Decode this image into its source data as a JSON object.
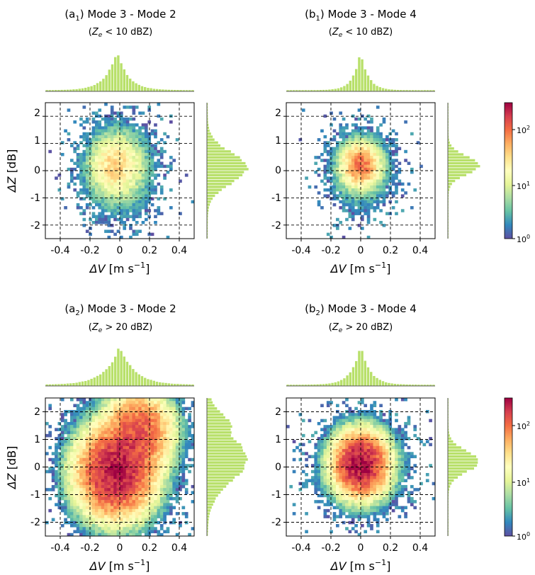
{
  "colorbar": {
    "type": "log",
    "range": [
      1,
      300
    ],
    "ticks": [
      {
        "base": "10",
        "exp": "0"
      },
      {
        "base": "10",
        "exp": "1"
      },
      {
        "base": "10",
        "exp": "2"
      }
    ],
    "colors": [
      "#5e4fa2",
      "#3288bd",
      "#66c2a5",
      "#abdda4",
      "#e6f598",
      "#ffffbf",
      "#fee08b",
      "#fdae61",
      "#f46d43",
      "#d53e4f",
      "#9e0142"
    ]
  },
  "hist_color": "#b8e06a",
  "chart_data": [
    {
      "type": "heatmap",
      "title_prefix": "(a",
      "title_sub": "1",
      "title_suffix": ") Mode 3 - Mode 2",
      "subtitle_var": "Z",
      "subtitle_sub": "e",
      "subtitle_rest": " < 10 dBZ)",
      "x_ticks": [
        "-0.4",
        "-0.2",
        "0",
        "0.2",
        "0.4"
      ],
      "y_ticks": [
        "2",
        "1",
        "0",
        "-1",
        "-2"
      ],
      "xlim": [
        -0.5,
        0.5
      ],
      "ylim": [
        -2.5,
        2.5
      ],
      "grid": true,
      "ylabel_sym": "ΔZ",
      "ylabel_unit": " [dB]",
      "xlabel_sym": "ΔV",
      "xlabel_unit": " [m s",
      "xlabel_exp": "−1",
      "xlabel_close": "]",
      "centers": [
        [
          -0.03,
          0.2,
          0.35,
          30
        ]
      ],
      "spread": [
        0.15,
        1.1
      ],
      "top_hist": {
        "center": -0.02,
        "width": 0.12
      },
      "right_hist": {
        "center": 0.1,
        "width": 0.75
      }
    },
    {
      "type": "heatmap",
      "title_prefix": "(b",
      "title_sub": "1",
      "title_suffix": ") Mode 3 - Mode 4",
      "subtitle_var": "Z",
      "subtitle_sub": "e",
      "subtitle_rest": " < 10 dBZ)",
      "x_ticks": [
        "-0.4",
        "-0.2",
        "0",
        "0.2",
        "0.4"
      ],
      "y_ticks": [
        "2",
        "1",
        "0",
        "-1",
        "-2"
      ],
      "xlim": [
        -0.5,
        0.5
      ],
      "ylim": [
        -2.5,
        2.5
      ],
      "grid": true,
      "xlabel_sym": "ΔV",
      "xlabel_unit": " [m s",
      "xlabel_exp": "−1",
      "xlabel_close": "]",
      "centers": [
        [
          0.0,
          0.2,
          0.25,
          90
        ]
      ],
      "spread": [
        0.13,
        0.9
      ],
      "top_hist": {
        "center": 0.0,
        "width": 0.08
      },
      "right_hist": {
        "center": 0.2,
        "width": 0.45
      },
      "colorbar": true
    },
    {
      "type": "heatmap",
      "title_prefix": "(a",
      "title_sub": "2",
      "title_suffix": ") Mode 3 - Mode 2",
      "subtitle_var": "Z",
      "subtitle_sub": "e",
      "subtitle_rest": " > 20 dBZ)",
      "x_ticks": [
        "-0.4",
        "-0.2",
        "0",
        "0.2",
        "0.4"
      ],
      "y_ticks": [
        "2",
        "1",
        "0",
        "-1",
        "-2"
      ],
      "xlim": [
        -0.5,
        0.5
      ],
      "ylim": [
        -2.5,
        2.5
      ],
      "grid": true,
      "ylabel_sym": "ΔZ",
      "ylabel_unit": " [dB]",
      "xlabel_sym": "ΔV",
      "xlabel_unit": " [m s",
      "xlabel_exp": "−1",
      "xlabel_close": "]",
      "centers": [
        [
          -0.03,
          -0.2,
          0.5,
          250
        ],
        [
          0.13,
          1.3,
          0.45,
          120
        ]
      ],
      "spread": [
        0.2,
        1.4
      ],
      "top_hist": {
        "center": 0.0,
        "width": 0.16
      },
      "right_hist": {
        "center": 0.3,
        "width": 1.1
      }
    },
    {
      "type": "heatmap",
      "title_prefix": "(b",
      "title_sub": "2",
      "title_suffix": ") Mode 3 - Mode 4",
      "subtitle_var": "Z",
      "subtitle_sub": "e",
      "subtitle_rest": " > 20 dBZ)",
      "x_ticks": [
        "-0.4",
        "-0.2",
        "0",
        "0.2",
        "0.4"
      ],
      "y_ticks": [
        "2",
        "1",
        "0",
        "-1",
        "-2"
      ],
      "xlim": [
        -0.5,
        0.5
      ],
      "ylim": [
        -2.5,
        2.5
      ],
      "grid": true,
      "xlabel_sym": "ΔV",
      "xlabel_unit": " [m s",
      "xlabel_exp": "−1",
      "xlabel_close": "]",
      "centers": [
        [
          0.0,
          0.1,
          0.35,
          300
        ]
      ],
      "spread": [
        0.17,
        1.0
      ],
      "top_hist": {
        "center": 0.0,
        "width": 0.1
      },
      "right_hist": {
        "center": 0.2,
        "width": 0.5
      },
      "colorbar": true
    }
  ]
}
